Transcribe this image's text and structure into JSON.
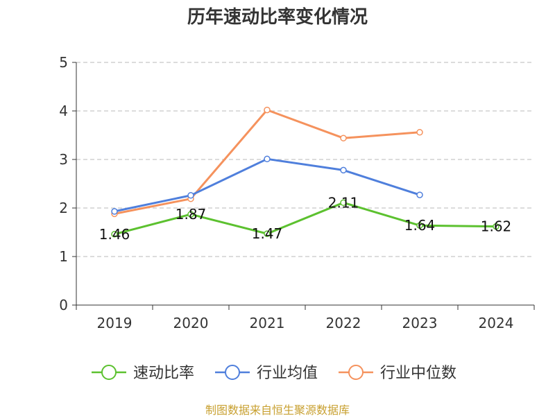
{
  "chart_data": {
    "type": "line",
    "title": "历年速动比率变化情况",
    "categories": [
      "2019",
      "2020",
      "2021",
      "2022",
      "2023",
      "2024"
    ],
    "ylim": [
      0,
      5
    ],
    "yticks": [
      0,
      1,
      2,
      3,
      4,
      5
    ],
    "grid": true,
    "legend_position": "bottom",
    "series": [
      {
        "name": "速动比率",
        "color": "#5cc12f",
        "values": [
          1.46,
          1.87,
          1.47,
          2.11,
          1.64,
          1.62
        ],
        "labels": [
          "1.46",
          "1.87",
          "1.47",
          "2.11",
          "1.64",
          "1.62"
        ],
        "show_labels": true
      },
      {
        "name": "行业均值",
        "color": "#4f7fdc",
        "values": [
          1.93,
          2.26,
          3.01,
          2.78,
          2.27,
          null
        ],
        "show_labels": false
      },
      {
        "name": "行业中位数",
        "color": "#f5925d",
        "values": [
          1.88,
          2.19,
          4.02,
          3.44,
          3.56,
          null
        ],
        "show_labels": false
      }
    ]
  },
  "source_text": "制图数据来自恒生聚源数据库"
}
